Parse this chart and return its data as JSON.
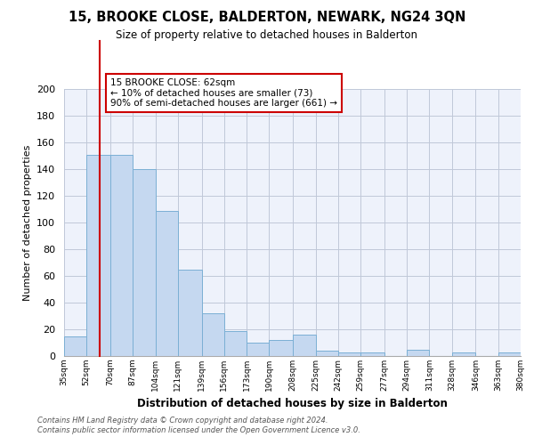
{
  "title": "15, BROOKE CLOSE, BALDERTON, NEWARK, NG24 3QN",
  "subtitle": "Size of property relative to detached houses in Balderton",
  "xlabel": "Distribution of detached houses by size in Balderton",
  "ylabel": "Number of detached properties",
  "bin_labels": [
    "35sqm",
    "52sqm",
    "70sqm",
    "87sqm",
    "104sqm",
    "121sqm",
    "139sqm",
    "156sqm",
    "173sqm",
    "190sqm",
    "208sqm",
    "225sqm",
    "242sqm",
    "259sqm",
    "277sqm",
    "294sqm",
    "311sqm",
    "328sqm",
    "346sqm",
    "363sqm",
    "380sqm"
  ],
  "bar_values": [
    15,
    151,
    151,
    140,
    109,
    65,
    32,
    19,
    10,
    12,
    16,
    4,
    3,
    3,
    0,
    5,
    0,
    3,
    0,
    3
  ],
  "bin_edges": [
    35,
    52,
    70,
    87,
    104,
    121,
    139,
    156,
    173,
    190,
    208,
    225,
    242,
    259,
    277,
    294,
    311,
    328,
    346,
    363,
    380
  ],
  "bar_color": "#c5d8f0",
  "bar_edge_color": "#7bafd4",
  "property_value": 62,
  "vline_color": "#cc0000",
  "annotation_text": "15 BROOKE CLOSE: 62sqm\n← 10% of detached houses are smaller (73)\n90% of semi-detached houses are larger (661) →",
  "annotation_box_color": "#ffffff",
  "annotation_box_edge_color": "#cc0000",
  "ylim": [
    0,
    200
  ],
  "yticks": [
    0,
    20,
    40,
    60,
    80,
    100,
    120,
    140,
    160,
    180,
    200
  ],
  "bg_color": "#eef2fb",
  "grid_color": "#c0c8d8",
  "footer_line1": "Contains HM Land Registry data © Crown copyright and database right 2024.",
  "footer_line2": "Contains public sector information licensed under the Open Government Licence v3.0."
}
